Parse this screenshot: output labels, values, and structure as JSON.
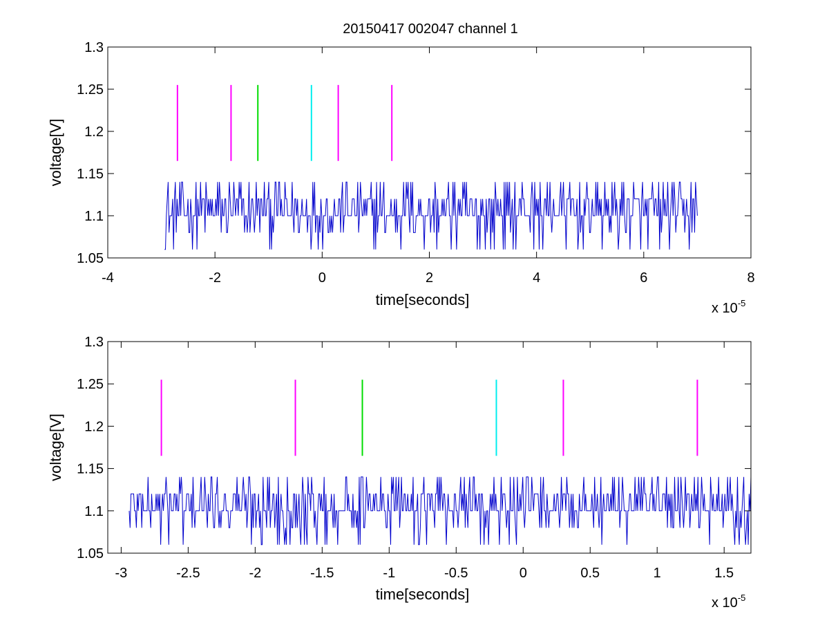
{
  "figure": {
    "title": "20150417 002047 channel 1"
  },
  "chart_data": [
    {
      "type": "line",
      "title": "20150417 002047 channel 1",
      "xlabel": "time[seconds]",
      "ylabel": "voltage[V]",
      "x_multiplier": "x 10",
      "x_exponent": "-5",
      "xlim": [
        -4,
        8
      ],
      "ylim": [
        1.05,
        1.3
      ],
      "xticks": [
        "-4",
        "-2",
        "0",
        "2",
        "4",
        "6",
        "8"
      ],
      "yticks": [
        "1.05",
        "1.1",
        "1.15",
        "1.2",
        "1.25",
        "1.3"
      ],
      "grid": false,
      "series": [
        {
          "color": "#0000cc",
          "baseline": 1.1,
          "levels": [
            1.06,
            1.08,
            1.1,
            1.12,
            1.14
          ],
          "x_range": [
            -2.94,
            7.0
          ]
        }
      ],
      "markers": [
        {
          "x": -2.7,
          "color": "#ff00ff",
          "y": [
            1.165,
            1.255
          ]
        },
        {
          "x": -1.7,
          "color": "#ff00ff",
          "y": [
            1.165,
            1.255
          ]
        },
        {
          "x": -1.2,
          "color": "#00dd00",
          "y": [
            1.165,
            1.255
          ]
        },
        {
          "x": -0.2,
          "color": "#00eeee",
          "y": [
            1.165,
            1.255
          ]
        },
        {
          "x": 0.3,
          "color": "#ff00ff",
          "y": [
            1.165,
            1.255
          ]
        },
        {
          "x": 1.3,
          "color": "#ff00ff",
          "y": [
            1.165,
            1.255
          ]
        }
      ]
    },
    {
      "type": "line",
      "xlabel": "time[seconds]",
      "ylabel": "voltage[V]",
      "x_multiplier": "x 10",
      "x_exponent": "-5",
      "xlim": [
        -3.1,
        1.7
      ],
      "ylim": [
        1.05,
        1.3
      ],
      "xticks": [
        "-3",
        "-2.5",
        "-2",
        "-1.5",
        "-1",
        "-0.5",
        "0",
        "0.5",
        "1",
        "1.5"
      ],
      "yticks": [
        "1.05",
        "1.1",
        "1.15",
        "1.2",
        "1.25",
        "1.3"
      ],
      "grid": false,
      "series": [
        {
          "color": "#0000cc",
          "baseline": 1.1,
          "levels": [
            1.06,
            1.08,
            1.1,
            1.12,
            1.14
          ],
          "x_range": [
            -2.94,
            1.7
          ]
        }
      ],
      "markers": [
        {
          "x": -2.7,
          "color": "#ff00ff",
          "y": [
            1.165,
            1.255
          ]
        },
        {
          "x": -1.7,
          "color": "#ff00ff",
          "y": [
            1.165,
            1.255
          ]
        },
        {
          "x": -1.2,
          "color": "#00dd00",
          "y": [
            1.165,
            1.255
          ]
        },
        {
          "x": -0.2,
          "color": "#00eeee",
          "y": [
            1.165,
            1.255
          ]
        },
        {
          "x": 0.3,
          "color": "#ff00ff",
          "y": [
            1.165,
            1.255
          ]
        },
        {
          "x": 1.3,
          "color": "#ff00ff",
          "y": [
            1.165,
            1.255
          ]
        }
      ]
    }
  ]
}
